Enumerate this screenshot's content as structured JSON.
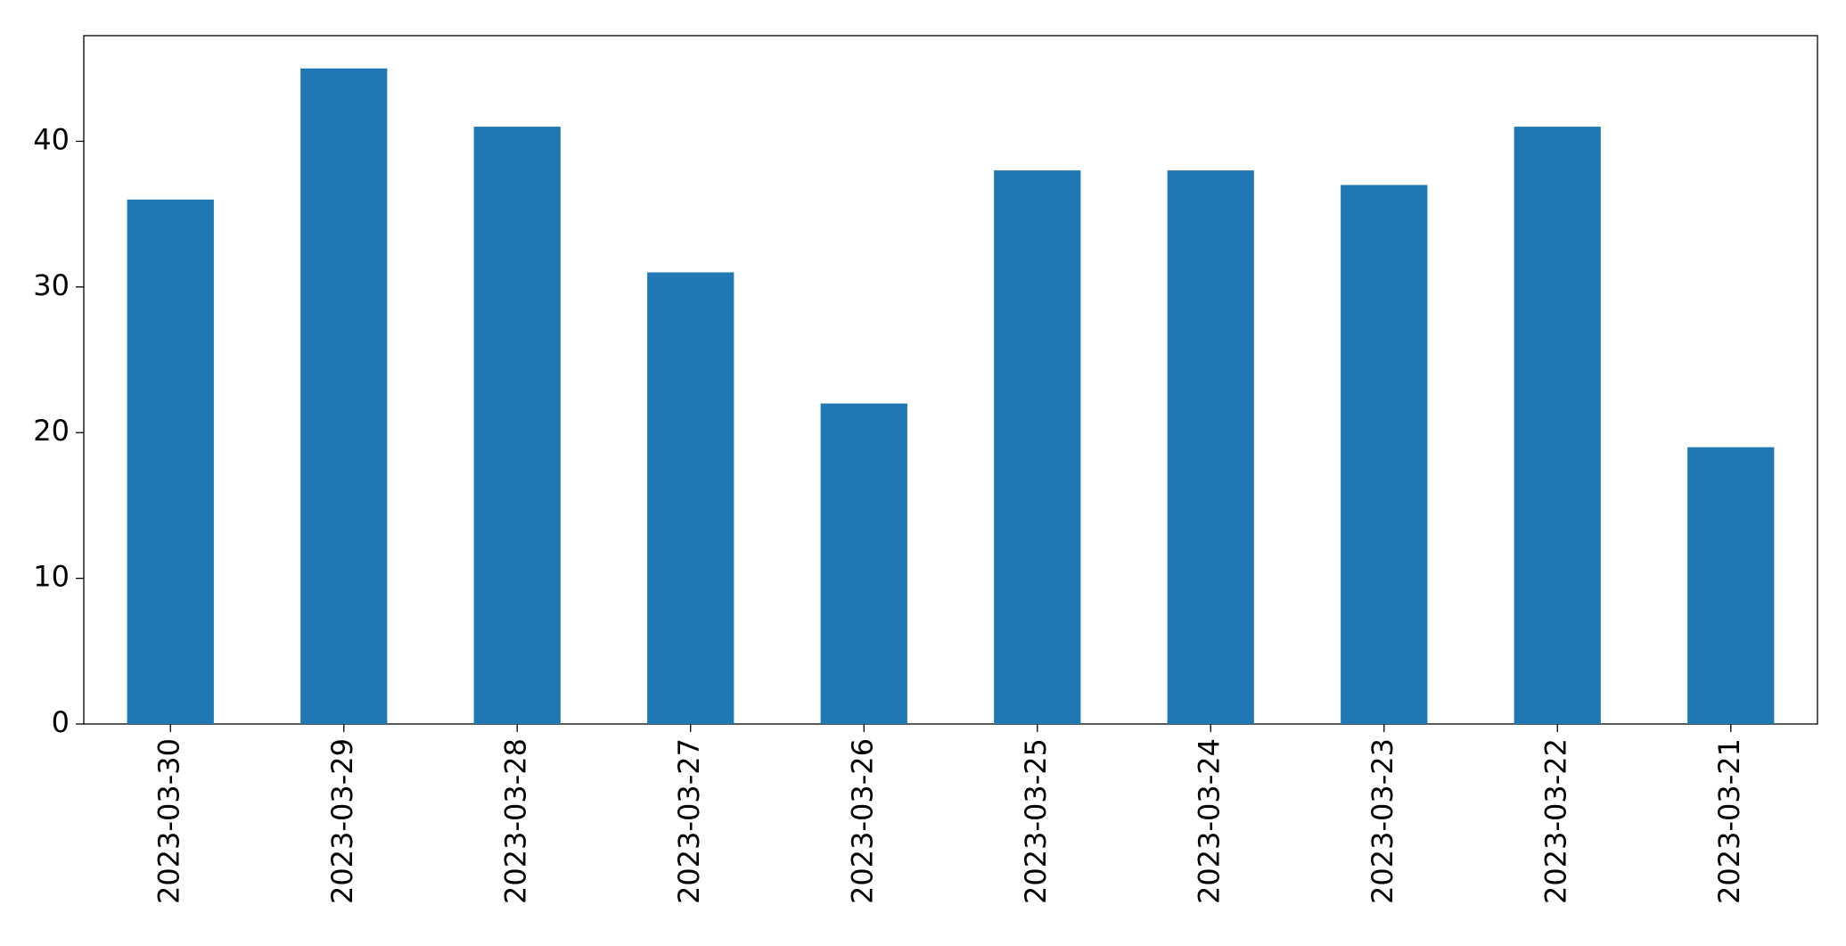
{
  "chart_data": {
    "type": "bar",
    "categories": [
      "2023-03-30",
      "2023-03-29",
      "2023-03-28",
      "2023-03-27",
      "2023-03-26",
      "2023-03-25",
      "2023-03-24",
      "2023-03-23",
      "2023-03-22",
      "2023-03-21"
    ],
    "values": [
      36,
      45,
      41,
      31,
      22,
      38,
      38,
      37,
      41,
      19
    ],
    "color": "#1f77b4",
    "ylim": [
      0,
      47.25
    ],
    "yticks": [
      0,
      10,
      20,
      30,
      40
    ],
    "grid": false
  }
}
